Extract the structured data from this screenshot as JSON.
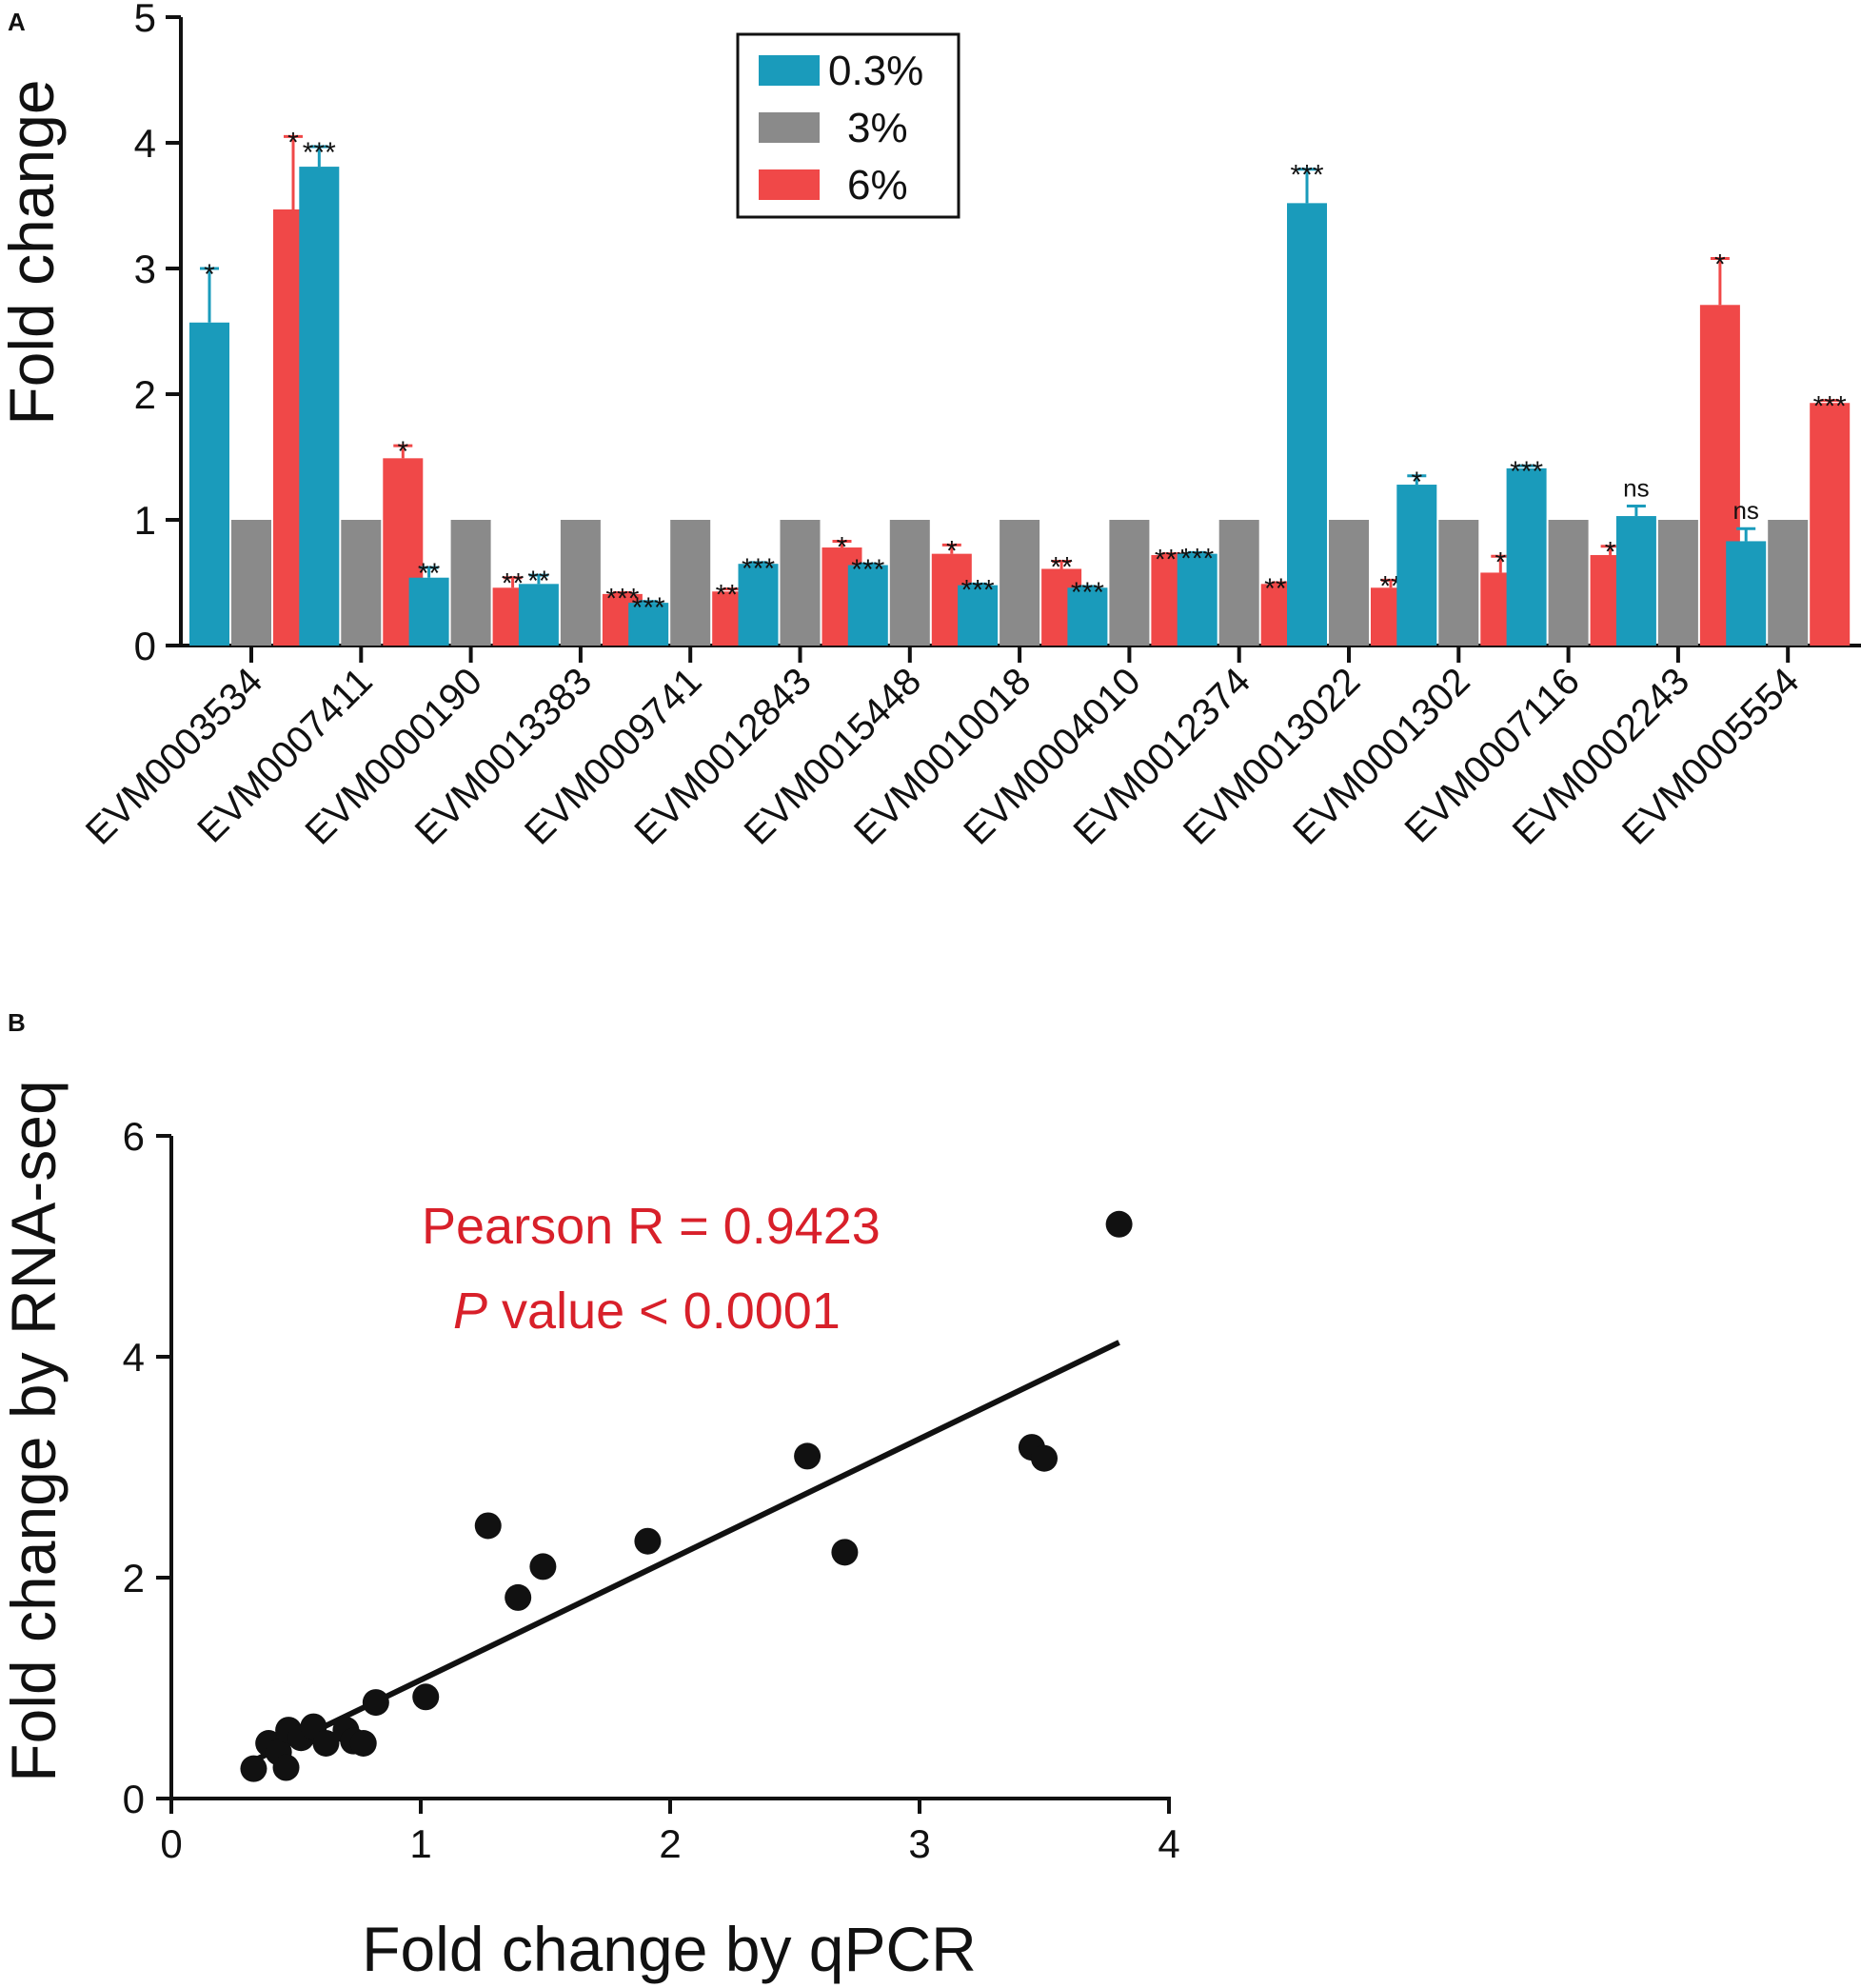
{
  "chart_data": [
    {
      "panel": "A",
      "type": "bar",
      "ylabel": "Fold change",
      "xlabel": "",
      "ylim": [
        0,
        5
      ],
      "yticks": [
        "0",
        "1",
        "2",
        "3",
        "4",
        "5"
      ],
      "categories": [
        "EVM0003534",
        "EVM0007411",
        "EVM0000190",
        "EVM0013383",
        "EVM0009741",
        "EVM0012843",
        "EVM0015448",
        "EVM0010018",
        "EVM0004010",
        "EVM0012374",
        "EVM0013022",
        "EVM0001302",
        "EVM0007116",
        "EVM0002243",
        "EVM0005554"
      ],
      "legend": {
        "position": "top-center"
      },
      "series": [
        {
          "name": "0.3%",
          "color": "#1a9bbb",
          "values": [
            2.57,
            3.81,
            0.54,
            0.49,
            0.34,
            0.65,
            0.64,
            0.48,
            0.46,
            0.73,
            3.52,
            1.28,
            1.41,
            1.03,
            0.83
          ],
          "errors": [
            0.43,
            0.16,
            0.08,
            0.07,
            0.01,
            0.01,
            0.01,
            0.01,
            0.01,
            0.01,
            0.27,
            0.07,
            0.02,
            0.08,
            0.1
          ],
          "signif": [
            "*",
            "***",
            "**",
            "**",
            "***",
            "***",
            "***",
            "***",
            "***",
            "***",
            "***",
            "*",
            "***",
            "ns",
            "ns"
          ]
        },
        {
          "name": "3%",
          "color": "#8a8a8a",
          "values": [
            1,
            1,
            1,
            1,
            1,
            1,
            1,
            1,
            1,
            1,
            1,
            1,
            1,
            1,
            1
          ],
          "errors": [
            0,
            0,
            0,
            0,
            0,
            0,
            0,
            0,
            0,
            0,
            0,
            0,
            0,
            0,
            0
          ],
          "signif": [
            "",
            "",
            "",
            "",
            "",
            "",
            "",
            "",
            "",
            "",
            "",
            "",
            "",
            "",
            ""
          ]
        },
        {
          "name": "6%",
          "color": "#f04848",
          "values": [
            3.47,
            1.49,
            0.46,
            0.41,
            0.43,
            0.78,
            0.73,
            0.61,
            0.72,
            0.49,
            0.46,
            0.58,
            0.72,
            2.71,
            1.93
          ],
          "errors": [
            0.58,
            0.1,
            0.08,
            0.01,
            0.02,
            0.05,
            0.07,
            0.06,
            0.01,
            0.01,
            0.06,
            0.13,
            0.07,
            0.37,
            0.02
          ],
          "signif": [
            "*",
            "*",
            "**",
            "***",
            "***",
            "*",
            "*",
            "**",
            "***",
            "***",
            "**",
            "*",
            "*",
            "*",
            "***"
          ]
        }
      ]
    },
    {
      "panel": "B",
      "type": "scatter",
      "xlabel": "Fold change by qPCR",
      "ylabel": "Fold change by RNA-seq",
      "xlim": [
        0,
        4
      ],
      "ylim": [
        0,
        6
      ],
      "xticks": [
        "0",
        "1",
        "2",
        "3",
        "4"
      ],
      "yticks": [
        "0",
        "2",
        "4",
        "6"
      ],
      "points": [
        [
          3.8,
          5.2
        ],
        [
          2.55,
          3.1
        ],
        [
          3.45,
          3.18
        ],
        [
          3.5,
          3.08
        ],
        [
          2.7,
          2.23
        ],
        [
          1.27,
          2.47
        ],
        [
          1.91,
          2.33
        ],
        [
          1.49,
          2.1
        ],
        [
          1.39,
          1.82
        ],
        [
          1.02,
          0.92
        ],
        [
          0.82,
          0.87
        ],
        [
          0.33,
          0.27
        ],
        [
          0.39,
          0.5
        ],
        [
          0.43,
          0.42
        ],
        [
          0.46,
          0.28
        ],
        [
          0.47,
          0.62
        ],
        [
          0.52,
          0.55
        ],
        [
          0.57,
          0.65
        ],
        [
          0.62,
          0.5
        ],
        [
          0.7,
          0.62
        ],
        [
          0.73,
          0.52
        ],
        [
          0.77,
          0.5
        ]
      ],
      "fit_line": {
        "x": [
          0.3,
          3.8
        ],
        "y": [
          0.31,
          4.13
        ]
      },
      "annotation": {
        "pearson": "Pearson R = 0.9423",
        "p_symbol": "P",
        "p_text": " value < 0.0001",
        "color": "#d8202a"
      }
    }
  ],
  "labels": {
    "panel_a": "A",
    "panel_b": "B"
  }
}
